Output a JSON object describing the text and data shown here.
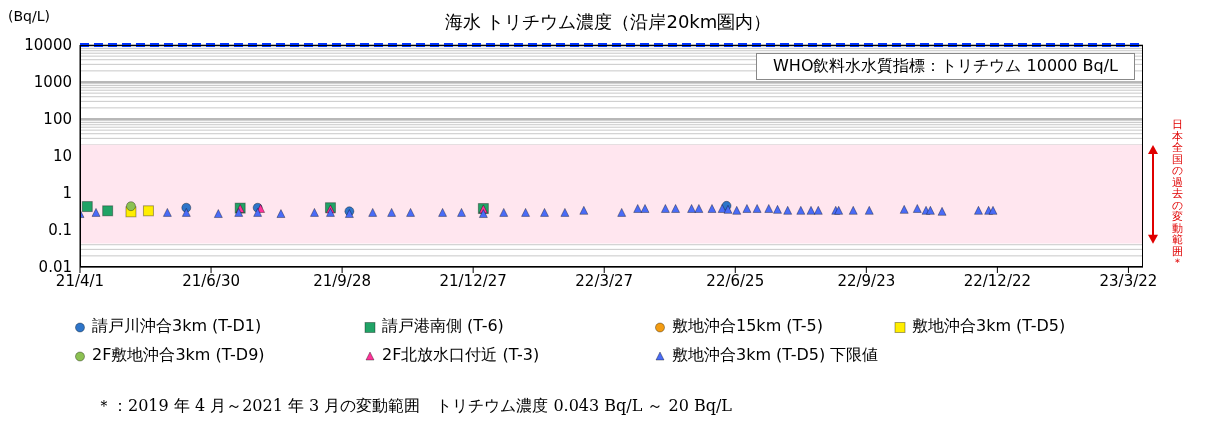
{
  "chart_data": {
    "type": "scatter",
    "title": "海水 トリチウム濃度（沿岸20km圏内）",
    "ylabel": "(Bq/L)",
    "log": "y",
    "grid": "y",
    "legend": "bottom",
    "xlim": [
      "2021-04-01",
      "2023-04-01"
    ],
    "xticks": [
      {
        "value": "2021-04-01",
        "label": "21/4/1"
      },
      {
        "value": "2021-06-30",
        "label": "21/6/30"
      },
      {
        "value": "2021-09-28",
        "label": "21/9/28"
      },
      {
        "value": "2021-12-27",
        "label": "21/12/27"
      },
      {
        "value": "2022-03-27",
        "label": "22/3/27"
      },
      {
        "value": "2022-06-25",
        "label": "22/6/25"
      },
      {
        "value": "2022-09-23",
        "label": "22/9/23"
      },
      {
        "value": "2022-12-22",
        "label": "22/12/22"
      },
      {
        "value": "2023-03-22",
        "label": "23/3/22"
      }
    ],
    "ylim": [
      0.01,
      10000
    ],
    "yticks": [
      0.01,
      0.1,
      1,
      10,
      100,
      1000,
      10000
    ],
    "series": [
      {
        "name": "請戸川沖合3km (T-D1)",
        "color": "#2e75c9",
        "marker": "circle",
        "x": [
          "2021-06-13",
          "2021-08-01",
          "2021-10-03",
          "2022-06-19"
        ],
        "values": [
          0.4,
          0.4,
          0.32,
          0.45
        ]
      },
      {
        "name": "請戸港南側 (T-6)",
        "color": "#21a366",
        "marker": "square",
        "x": [
          "2021-04-06",
          "2021-04-20",
          "2021-07-20",
          "2021-09-20",
          "2022-01-03"
        ],
        "values": [
          0.43,
          0.33,
          0.39,
          0.4,
          0.38
        ]
      },
      {
        "name": "敷地沖合15km (T-5)",
        "color": "#f39c12",
        "marker": "circle"
      },
      {
        "name": "敷地沖合3km (T-D5)",
        "color": "#ffee00",
        "marker": "square",
        "x": [
          "2021-05-06",
          "2021-05-18"
        ],
        "values": [
          0.31,
          0.33
        ]
      },
      {
        "name": "2F敷地沖合3km (T-D9)",
        "color": "#8cc152",
        "marker": "circle",
        "x": [
          "2021-05-06"
        ],
        "values": [
          0.44
        ]
      },
      {
        "name": "2F北放水口付近 (T-3)",
        "color": "#ff3399",
        "marker": "triangle",
        "x": [
          "2021-07-20",
          "2021-08-03",
          "2021-09-20",
          "2022-01-03"
        ],
        "values": [
          0.37,
          0.37,
          0.36,
          0.36
        ]
      },
      {
        "name": "敷地沖合3km (T-D5) 下限値",
        "color": "#4a6cf7",
        "marker": "triangle",
        "x": [
          "2021-04-01",
          "2021-04-12",
          "2021-05-31",
          "2021-06-13",
          "2021-07-05",
          "2021-07-19",
          "2021-08-01",
          "2021-08-17",
          "2021-09-09",
          "2021-09-20",
          "2021-10-03",
          "2021-10-19",
          "2021-11-01",
          "2021-11-14",
          "2021-12-06",
          "2021-12-19",
          "2022-01-03",
          "2022-01-17",
          "2022-02-01",
          "2022-02-14",
          "2022-02-28",
          "2022-03-13",
          "2022-04-08",
          "2022-04-19",
          "2022-04-24",
          "2022-05-08",
          "2022-05-15",
          "2022-05-26",
          "2022-05-31",
          "2022-06-09",
          "2022-06-16",
          "2022-06-20",
          "2022-06-26",
          "2022-07-03",
          "2022-07-10",
          "2022-07-18",
          "2022-07-24",
          "2022-07-31",
          "2022-08-09",
          "2022-08-16",
          "2022-08-21",
          "2022-09-02",
          "2022-09-04",
          "2022-09-14",
          "2022-09-25",
          "2022-10-19",
          "2022-10-28",
          "2022-11-03",
          "2022-11-06",
          "2022-11-14",
          "2022-12-09",
          "2022-12-16",
          "2022-12-19"
        ],
        "values": [
          0.27,
          0.29,
          0.29,
          0.29,
          0.27,
          0.29,
          0.29,
          0.27,
          0.29,
          0.29,
          0.27,
          0.29,
          0.29,
          0.29,
          0.29,
          0.29,
          0.27,
          0.29,
          0.29,
          0.29,
          0.29,
          0.33,
          0.29,
          0.37,
          0.37,
          0.37,
          0.37,
          0.37,
          0.37,
          0.37,
          0.37,
          0.35,
          0.33,
          0.37,
          0.37,
          0.37,
          0.35,
          0.33,
          0.33,
          0.33,
          0.33,
          0.33,
          0.33,
          0.33,
          0.33,
          0.35,
          0.37,
          0.33,
          0.33,
          0.31,
          0.33,
          0.33,
          0.33
        ]
      }
    ],
    "ref_lines": [
      {
        "axis": "y",
        "value": 10000,
        "label": "WHO飲料水水質指標：トリチウム 10000 Bq/L",
        "color": "#0033ff",
        "line_style": "dashed"
      }
    ],
    "bands": [
      {
        "axis": "y",
        "from": 0.043,
        "to": 20,
        "label": "日本全国の過去の変動範囲＊",
        "color": "#ffe6ef"
      }
    ],
    "annotations": [
      "＊：2019 年 4 月～2021 年 3 月の変動範囲　トリチウム濃度 0.043 Bq/L ～ 20 Bq/L"
    ]
  }
}
